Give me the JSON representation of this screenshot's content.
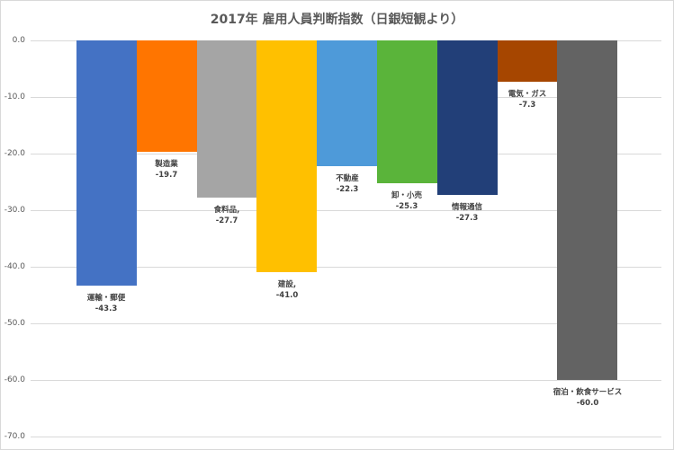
{
  "chart_data": {
    "type": "bar",
    "title": "2017年 雇用人員判断指数（日銀短観より）",
    "xlabel": "",
    "ylabel": "",
    "ylim": [
      -70,
      0
    ],
    "grid": true,
    "legend": "none",
    "y_ticks": [
      "0.0",
      "-10.0",
      "-20.0",
      "-30.0",
      "-40.0",
      "-50.0",
      "-60.0",
      "-70.0"
    ],
    "categories": [
      "運輸・郵便",
      "製造業",
      "食料品,",
      "建設,",
      "不動産",
      "卸・小売",
      "情報通信",
      "電気・ガス",
      "宿泊・飲食サービス"
    ],
    "values": [
      -43.3,
      -19.7,
      -27.7,
      -41.0,
      -22.3,
      -25.3,
      -27.3,
      -7.3,
      -60.0
    ],
    "value_labels": [
      "-43.3",
      "-19.7",
      "-27.7",
      "-41.0",
      "-22.3",
      "-25.3",
      "-27.3",
      "-7.3",
      "-60.0"
    ],
    "colors": [
      "#4472c4",
      "#ff7500",
      "#a5a5a5",
      "#ffc000",
      "#4e9ad9",
      "#5ab43a",
      "#223f78",
      "#a64600",
      "#636363"
    ]
  }
}
